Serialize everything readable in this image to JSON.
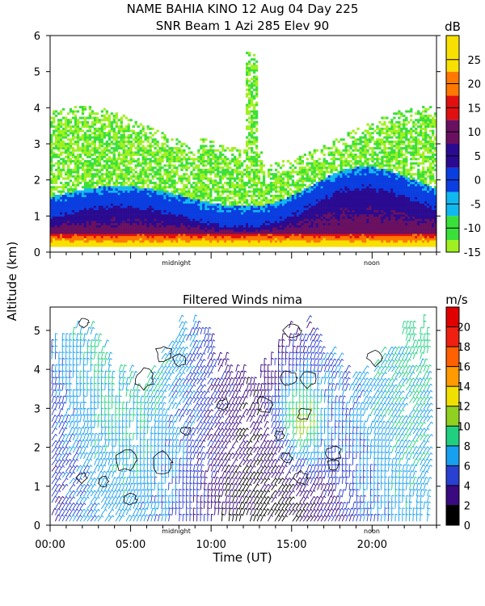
{
  "titles": {
    "line1": "NAME BAHIA KINO   12 Aug 04 Day 225",
    "line2": "SNR Beam 1 Azi 285 Elev 90",
    "wind_title": "Filtered Winds nima"
  },
  "shared_y_label": "Altitude (km)",
  "time_markers": {
    "midnight": "midnight",
    "noon": "noon"
  },
  "chart_data": [
    {
      "type": "heatmap",
      "title": "SNR Beam 1 Azi 285 Elev 90",
      "ylim": [
        0,
        6
      ],
      "yticks": [
        0,
        1,
        2,
        3,
        4,
        5,
        6
      ],
      "colorbar": {
        "unit": "dB",
        "ticks": [
          25,
          20,
          15,
          10,
          5,
          0,
          -5,
          -10,
          -15
        ],
        "bins": [
          {
            "min": -15,
            "max": -12.5,
            "color": "#a0f020"
          },
          {
            "min": -12.5,
            "max": -7.5,
            "color": "#3ae03a"
          },
          {
            "min": -7.5,
            "max": -2.5,
            "color": "#10b8f0"
          },
          {
            "min": -2.5,
            "max": 2.5,
            "color": "#0a3ee0"
          },
          {
            "min": 2.5,
            "max": 7.5,
            "color": "#2a0a90"
          },
          {
            "min": 7.5,
            "max": 12.5,
            "color": "#6a1060"
          },
          {
            "min": 12.5,
            "max": 17.5,
            "color": "#e01010"
          },
          {
            "min": 17.5,
            "max": 22.5,
            "color": "#ff7800"
          },
          {
            "min": 22.5,
            "max": 30,
            "color": "#f8e000"
          }
        ]
      }
    },
    {
      "type": "scatter",
      "title": "Filtered Winds nima",
      "xlabel": "Time (UT)",
      "xticks": [
        "00:00",
        "05:00",
        "10:00",
        "15:00",
        "20:00"
      ],
      "xlim": [
        0,
        24
      ],
      "ylim": [
        0,
        5.6
      ],
      "yticks": [
        0,
        1,
        2,
        3,
        4,
        5
      ],
      "colorbar": {
        "unit": "m/s",
        "ticks": [
          20,
          18,
          16,
          14,
          12,
          10,
          8,
          6,
          4,
          2,
          0
        ],
        "bins": [
          {
            "min": 0,
            "max": 2,
            "color": "#000000"
          },
          {
            "min": 2,
            "max": 4,
            "color": "#3a0a80"
          },
          {
            "min": 4,
            "max": 6,
            "color": "#2a40d0"
          },
          {
            "min": 6,
            "max": 8,
            "color": "#18a0f0"
          },
          {
            "min": 8,
            "max": 10,
            "color": "#20d080"
          },
          {
            "min": 10,
            "max": 12,
            "color": "#90d020"
          },
          {
            "min": 12,
            "max": 14,
            "color": "#f0e000"
          },
          {
            "min": 14,
            "max": 16,
            "color": "#ff9a00"
          },
          {
            "min": 16,
            "max": 18,
            "color": "#ff6000"
          },
          {
            "min": 18,
            "max": 20,
            "color": "#f02010"
          },
          {
            "min": 20,
            "max": 22,
            "color": "#e00000"
          }
        ]
      }
    }
  ]
}
